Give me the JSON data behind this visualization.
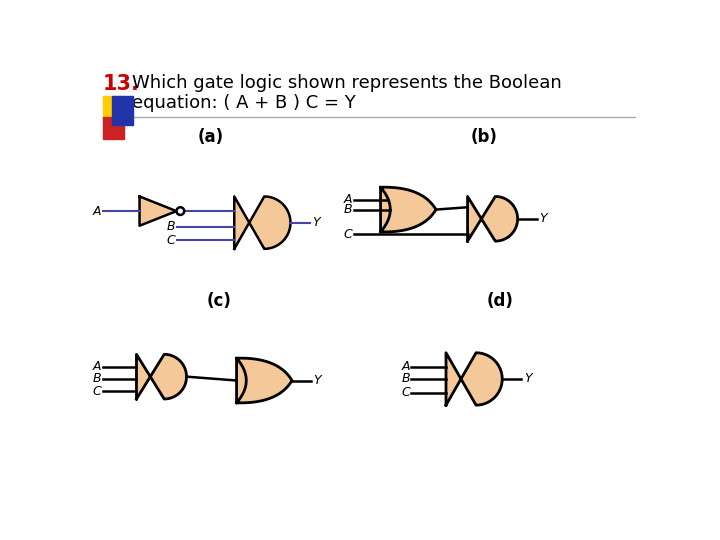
{
  "gate_fill": "#F5C899",
  "gate_edge": "#000000",
  "line_color_a": "#4444AA",
  "line_color": "#000000",
  "bg_color": "#FFFFFF",
  "title_color_num": "#CC0000",
  "title_color_text": "#000000",
  "label_a": "(a)",
  "label_b": "(b)",
  "label_c": "(c)",
  "label_d": "(d)",
  "deco_yellow": "#FFCC00",
  "deco_red": "#CC2222",
  "deco_blue": "#2233AA",
  "sep_color": "#AAAAAA"
}
